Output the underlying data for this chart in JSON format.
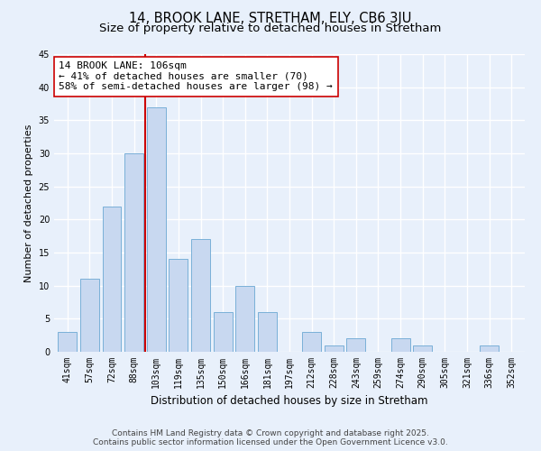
{
  "title": "14, BROOK LANE, STRETHAM, ELY, CB6 3JU",
  "subtitle": "Size of property relative to detached houses in Stretham",
  "xlabel": "Distribution of detached houses by size in Stretham",
  "ylabel": "Number of detached properties",
  "categories": [
    "41sqm",
    "57sqm",
    "72sqm",
    "88sqm",
    "103sqm",
    "119sqm",
    "135sqm",
    "150sqm",
    "166sqm",
    "181sqm",
    "197sqm",
    "212sqm",
    "228sqm",
    "243sqm",
    "259sqm",
    "274sqm",
    "290sqm",
    "305sqm",
    "321sqm",
    "336sqm",
    "352sqm"
  ],
  "values": [
    3,
    11,
    22,
    30,
    37,
    14,
    17,
    6,
    10,
    6,
    0,
    3,
    1,
    2,
    0,
    2,
    1,
    0,
    0,
    1,
    0
  ],
  "bar_color": "#c8d8f0",
  "bar_edge_color": "#7ab0d8",
  "vline_color": "#cc0000",
  "vline_x_index": 4,
  "annotation_line1": "14 BROOK LANE: 106sqm",
  "annotation_line2": "← 41% of detached houses are smaller (70)",
  "annotation_line3": "58% of semi-detached houses are larger (98) →",
  "annotation_box_facecolor": "#ffffff",
  "annotation_box_edgecolor": "#cc0000",
  "ylim": [
    0,
    45
  ],
  "yticks": [
    0,
    5,
    10,
    15,
    20,
    25,
    30,
    35,
    40,
    45
  ],
  "bg_color": "#e8f0fb",
  "grid_color": "#ffffff",
  "footer_line1": "Contains HM Land Registry data © Crown copyright and database right 2025.",
  "footer_line2": "Contains public sector information licensed under the Open Government Licence v3.0.",
  "title_fontsize": 10.5,
  "subtitle_fontsize": 9.5,
  "xlabel_fontsize": 8.5,
  "ylabel_fontsize": 8,
  "tick_fontsize": 7,
  "annotation_fontsize": 8,
  "footer_fontsize": 6.5
}
